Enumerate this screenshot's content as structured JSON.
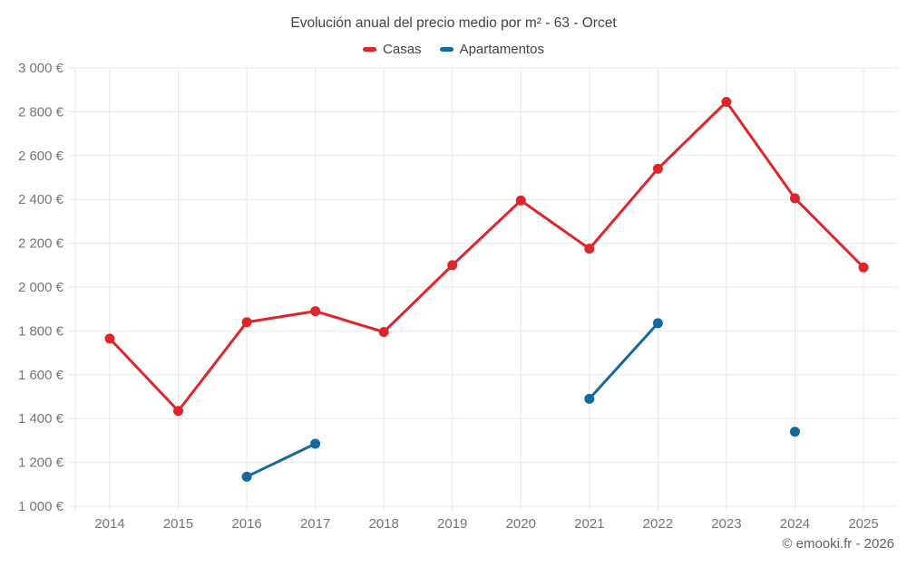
{
  "header": {
    "title": "Evolución anual del precio medio por m² - 63 - Orcet"
  },
  "footer": {
    "credit": "© emooki.fr - 2026"
  },
  "colors": {
    "casas": "#e02528",
    "apartamentos": "#1269a0",
    "grid": "#e8e8e8",
    "tick_text": "#757575",
    "title_text": "#3f4347"
  },
  "chart_data": {
    "type": "line",
    "title": "Evolución anual del precio medio por m² - 63 - Orcet",
    "x": [
      2014,
      2015,
      2016,
      2017,
      2018,
      2019,
      2020,
      2021,
      2022,
      2023,
      2024,
      2025
    ],
    "x_tick_labels": [
      "2014",
      "2015",
      "2016",
      "2017",
      "2018",
      "2019",
      "2020",
      "2021",
      "2022",
      "2023",
      "2024",
      "2025"
    ],
    "y_tick_labels": [
      "3 000 €",
      "2 800 €",
      "2 600 €",
      "2 400 €",
      "2 200 €",
      "2 000 €",
      "1 800 €",
      "1 600 €",
      "1 400 €",
      "1 200 €",
      "1 000 €"
    ],
    "ylim": [
      1000,
      3000
    ],
    "ytick_step": 200,
    "ylabel_unit": "€",
    "grid": true,
    "legend_position": "top",
    "series": [
      {
        "name": "Casas",
        "color": "#e02528",
        "values": [
          1765,
          1435,
          1840,
          1890,
          1795,
          2100,
          2395,
          2175,
          2540,
          2845,
          2405,
          2090
        ]
      },
      {
        "name": "Apartamentos",
        "color": "#1269a0",
        "values": [
          null,
          null,
          1135,
          1285,
          null,
          null,
          null,
          1490,
          1835,
          null,
          1340,
          null
        ]
      }
    ]
  }
}
